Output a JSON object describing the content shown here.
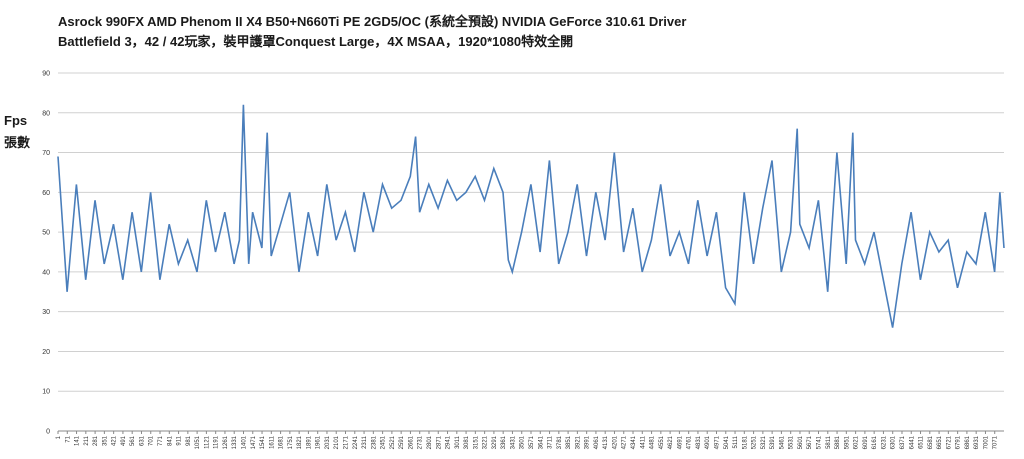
{
  "chart_data": {
    "type": "line",
    "title": "Asrock 990FX AMD Phenom II X4 B50+N660Ti PE 2GD5/OC (系統全預設) NVIDIA GeForce 310.61 Driver",
    "subtitle": "Battlefield 3，42 / 42玩家，裝甲護罩Conquest Large，4X MSAA，1920*1080特效全開",
    "ylabel_line1": "Fps",
    "ylabel_line2": "張數",
    "ylim": [
      0,
      90
    ],
    "yticks": [
      0,
      10,
      20,
      30,
      40,
      50,
      60,
      70,
      80,
      90
    ],
    "xlim": [
      1,
      7141
    ],
    "grid": true,
    "legend": "none",
    "series_color": "#4a7ebb",
    "xticks": [
      1,
      71,
      141,
      211,
      281,
      351,
      421,
      491,
      561,
      631,
      701,
      771,
      841,
      911,
      981,
      1051,
      1121,
      1191,
      1261,
      1331,
      1401,
      1471,
      1541,
      1611,
      1681,
      1751,
      1821,
      1891,
      1961,
      2031,
      2101,
      2171,
      2241,
      2311,
      2381,
      2451,
      2521,
      2591,
      2661,
      2731,
      2801,
      2871,
      2941,
      3011,
      3081,
      3151,
      3221,
      3291,
      3361,
      3431,
      3501,
      3571,
      3641,
      3711,
      3781,
      3851,
      3921,
      3991,
      4061,
      4131,
      4201,
      4271,
      4341,
      4411,
      4481,
      4551,
      4621,
      4691,
      4761,
      4831,
      4901,
      4971,
      5041,
      5111,
      5181,
      5251,
      5321,
      5391,
      5461,
      5531,
      5601,
      5671,
      5741,
      5811,
      5881,
      5951,
      6021,
      6091,
      6161,
      6231,
      6301,
      6371,
      6441,
      6511,
      6581,
      6651,
      6721,
      6791,
      6861,
      6931,
      7001,
      7071
    ],
    "x": [
      1,
      70,
      140,
      210,
      280,
      350,
      420,
      490,
      560,
      630,
      700,
      770,
      840,
      910,
      980,
      1050,
      1120,
      1190,
      1260,
      1330,
      1370,
      1400,
      1440,
      1470,
      1540,
      1580,
      1610,
      1680,
      1750,
      1820,
      1890,
      1960,
      2030,
      2100,
      2170,
      2240,
      2310,
      2380,
      2450,
      2520,
      2590,
      2660,
      2700,
      2730,
      2800,
      2870,
      2940,
      3010,
      3080,
      3150,
      3220,
      3290,
      3360,
      3400,
      3430,
      3500,
      3570,
      3640,
      3710,
      3780,
      3850,
      3920,
      3990,
      4060,
      4130,
      4200,
      4270,
      4340,
      4410,
      4480,
      4550,
      4620,
      4690,
      4760,
      4830,
      4900,
      4970,
      5040,
      5110,
      5180,
      5250,
      5320,
      5390,
      5460,
      5530,
      5580,
      5600,
      5670,
      5740,
      5810,
      5880,
      5950,
      6000,
      6020,
      6090,
      6160,
      6230,
      6300,
      6370,
      6440,
      6510,
      6580,
      6650,
      6720,
      6790,
      6860,
      6930,
      7000,
      7070,
      7110,
      7141
    ],
    "y": [
      69,
      35,
      62,
      38,
      58,
      42,
      52,
      38,
      55,
      40,
      60,
      38,
      52,
      42,
      48,
      40,
      58,
      45,
      55,
      42,
      48,
      82,
      42,
      55,
      46,
      75,
      44,
      52,
      60,
      40,
      55,
      44,
      62,
      48,
      55,
      45,
      60,
      50,
      62,
      56,
      58,
      64,
      74,
      55,
      62,
      56,
      63,
      58,
      60,
      64,
      58,
      66,
      60,
      43,
      40,
      50,
      62,
      45,
      68,
      42,
      50,
      62,
      44,
      60,
      48,
      70,
      45,
      56,
      40,
      48,
      62,
      44,
      50,
      42,
      58,
      44,
      55,
      36,
      32,
      60,
      42,
      56,
      68,
      40,
      50,
      76,
      52,
      46,
      58,
      35,
      70,
      42,
      75,
      48,
      42,
      50,
      38,
      26,
      42,
      55,
      38,
      50,
      45,
      48,
      36,
      45,
      42,
      55,
      40,
      60,
      46
    ]
  }
}
